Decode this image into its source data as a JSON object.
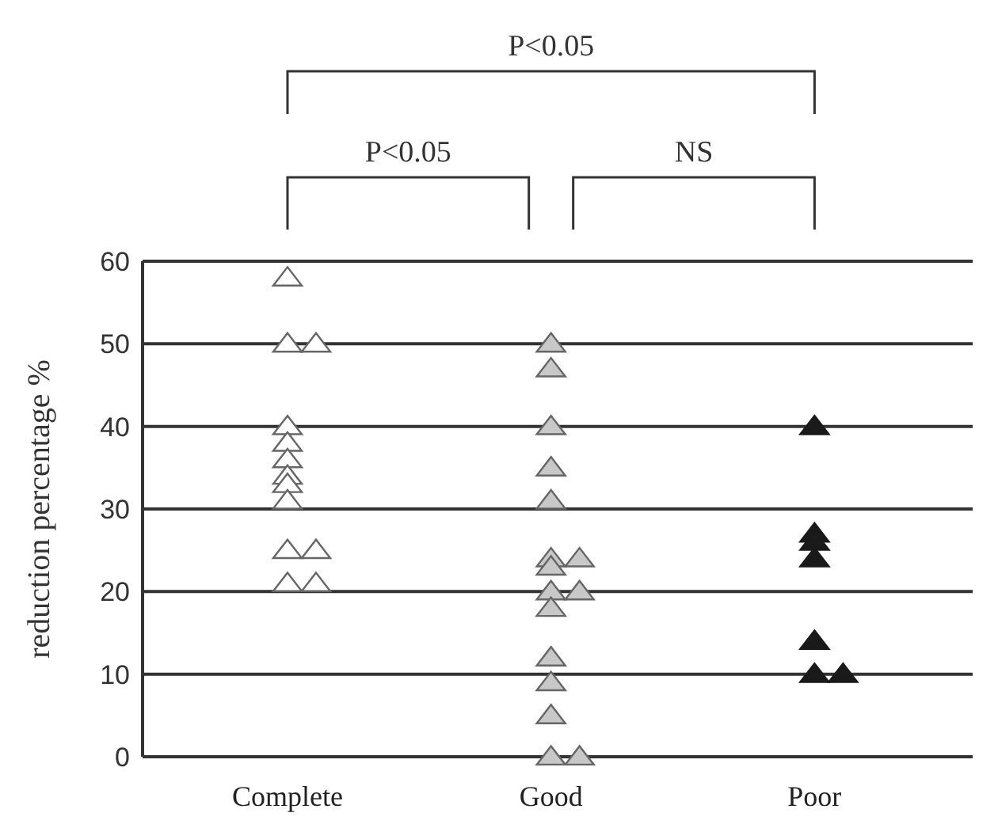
{
  "chart_data": {
    "type": "scatter",
    "ylabel": "reduction percentage  %",
    "categories": [
      "Complete",
      "Good",
      "Poor"
    ],
    "series": [
      {
        "color": "#ffffff",
        "x": [
          "Complete",
          "Complete",
          "Complete",
          "Complete",
          "Complete",
          "Complete",
          "Complete",
          "Complete",
          "Complete",
          "Complete",
          "Complete",
          "Complete",
          "Complete"
        ],
        "values": [
          58,
          50,
          50,
          40,
          38,
          36,
          34,
          33,
          31,
          25,
          25,
          21,
          21
        ]
      },
      {
        "color": "#c8c8c8",
        "x": [
          "Good",
          "Good",
          "Good",
          "Good",
          "Good",
          "Good",
          "Good",
          "Good",
          "Good",
          "Good",
          "Good",
          "Good",
          "Good",
          "Good",
          "Good",
          "Good"
        ],
        "values": [
          50,
          47,
          40,
          35,
          31,
          24,
          24,
          23,
          20,
          20,
          18,
          12,
          9,
          5,
          0,
          0
        ]
      },
      {
        "color": "#1a1a1a",
        "x": [
          "Poor",
          "Poor",
          "Poor",
          "Poor",
          "Poor",
          "Poor",
          "Poor"
        ],
        "values": [
          40,
          27,
          26,
          24,
          14,
          10,
          10
        ]
      }
    ],
    "ylim": [
      0,
      60
    ],
    "yticks": [
      0,
      10,
      20,
      30,
      40,
      50,
      60
    ],
    "grid": "y",
    "marker": "triangle",
    "annotations": [
      "P<0.05",
      "P<0.05",
      "NS"
    ]
  }
}
